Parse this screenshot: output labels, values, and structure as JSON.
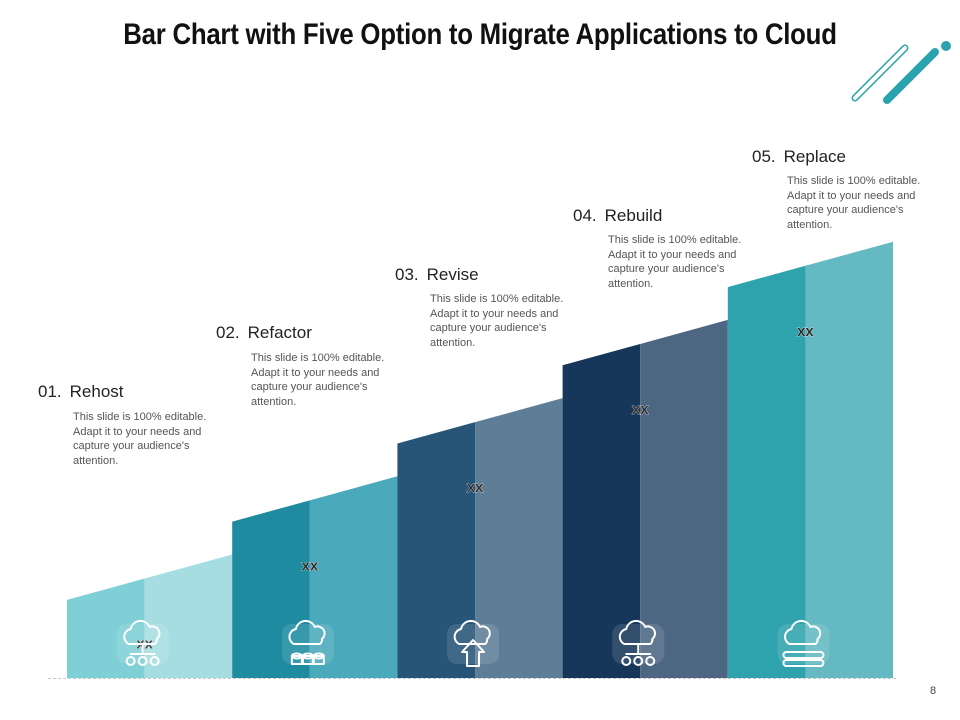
{
  "title": "Bar Chart with Five Option to Migrate Applications to Cloud",
  "page_number": "8",
  "colors": {
    "bar_left": [
      "#7fcfd6",
      "#1e8ba1",
      "#265578",
      "#17375a",
      "#2ea2ad"
    ],
    "bar_right": [
      "#a6dde2",
      "#4aa9bb",
      "#5e7e98",
      "#4d6682",
      "#64b9c2"
    ],
    "accent": "#2aa3ae"
  },
  "chart_data": {
    "type": "bar",
    "title": "Bar Chart with Five Option to Migrate Applications to Cloud",
    "categories": [
      "Rehost",
      "Refactor",
      "Revise",
      "Rebuild",
      "Replace"
    ],
    "values": [
      1,
      2,
      3,
      4,
      5
    ],
    "value_labels": [
      "xx",
      "xx",
      "xx",
      "xx",
      "xx"
    ],
    "icons": [
      "cloud-network-icon",
      "cloud-database-icon",
      "cloud-upload-icon",
      "cloud-network-icon",
      "cloud-storage-icon"
    ],
    "ylim": [
      0,
      5.5
    ],
    "xlabel": "",
    "ylabel": ""
  },
  "steps": [
    {
      "number": "01.",
      "label": "Rehost",
      "description": "This slide is 100% editable. Adapt it to your needs and capture your audience's attention."
    },
    {
      "number": "02.",
      "label": "Refactor",
      "description": "This slide is 100% editable. Adapt it to your needs and capture your audience's attention."
    },
    {
      "number": "03.",
      "label": "Revise",
      "description": "This slide is 100% editable. Adapt it to your needs and capture your audience's attention."
    },
    {
      "number": "04.",
      "label": "Rebuild",
      "description": "This slide is 100% editable. Adapt it to your needs and capture your audience's attention."
    },
    {
      "number": "05.",
      "label": "Replace",
      "description": "This slide is 100% editable. Adapt it to your needs and capture your audience's attention."
    }
  ]
}
